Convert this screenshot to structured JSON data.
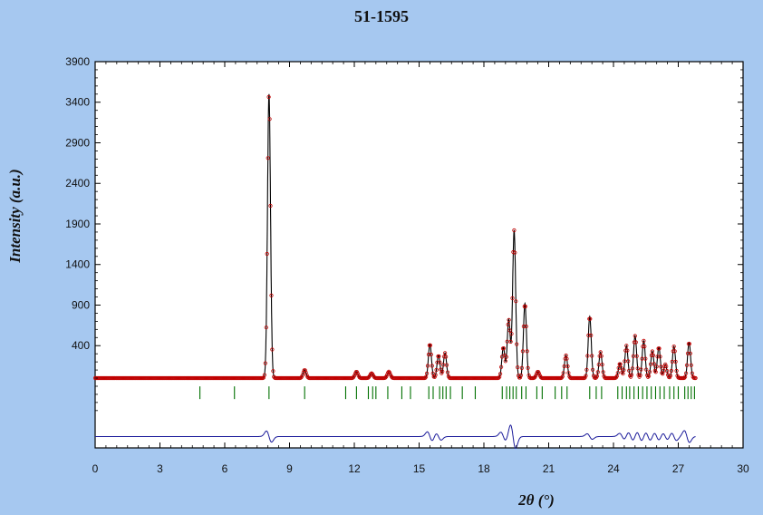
{
  "title": "51-1595",
  "chart_data": {
    "type": "line",
    "title": "51-1595",
    "xlabel": "2θ (°)",
    "ylabel": "Intensity (a.u.)",
    "xlim": [
      0,
      30
    ],
    "ylim": [
      -860,
      3900
    ],
    "xticks": [
      0,
      3,
      6,
      9,
      12,
      15,
      18,
      21,
      24,
      27,
      30
    ],
    "yticks": [
      400,
      900,
      1400,
      1900,
      2400,
      2900,
      3400,
      3900
    ],
    "baseline": 0,
    "series": [
      {
        "role": "calculated",
        "color": "#000000",
        "kind": "peaks",
        "peaks": [
          {
            "x": 8.05,
            "y": 3500
          },
          {
            "x": 9.7,
            "y": 100
          },
          {
            "x": 12.1,
            "y": 80
          },
          {
            "x": 12.8,
            "y": 60
          },
          {
            "x": 13.6,
            "y": 80
          },
          {
            "x": 15.5,
            "y": 420
          },
          {
            "x": 15.9,
            "y": 280
          },
          {
            "x": 16.2,
            "y": 310
          },
          {
            "x": 18.9,
            "y": 380
          },
          {
            "x": 19.15,
            "y": 720
          },
          {
            "x": 19.4,
            "y": 1820
          },
          {
            "x": 19.9,
            "y": 920
          },
          {
            "x": 20.5,
            "y": 80
          },
          {
            "x": 21.8,
            "y": 280
          },
          {
            "x": 22.9,
            "y": 760
          },
          {
            "x": 23.4,
            "y": 320
          },
          {
            "x": 24.3,
            "y": 180
          },
          {
            "x": 24.6,
            "y": 400
          },
          {
            "x": 25.0,
            "y": 520
          },
          {
            "x": 25.4,
            "y": 460
          },
          {
            "x": 25.8,
            "y": 330
          },
          {
            "x": 26.1,
            "y": 380
          },
          {
            "x": 26.4,
            "y": 170
          },
          {
            "x": 26.8,
            "y": 390
          },
          {
            "x": 27.5,
            "y": 440
          }
        ]
      },
      {
        "role": "observed",
        "color": "#c00000",
        "marker": "open-circle"
      },
      {
        "role": "bragg-positions",
        "color": "#007000",
        "y": -180,
        "x": [
          4.85,
          6.45,
          8.05,
          9.7,
          11.6,
          12.1,
          12.65,
          12.85,
          13.0,
          13.55,
          14.2,
          14.6,
          15.45,
          15.65,
          15.95,
          16.1,
          16.25,
          16.45,
          17.0,
          17.6,
          18.85,
          19.05,
          19.2,
          19.35,
          19.5,
          19.75,
          19.95,
          20.45,
          20.7,
          21.3,
          21.6,
          21.85,
          22.9,
          23.2,
          23.45,
          24.2,
          24.4,
          24.6,
          24.75,
          24.95,
          25.15,
          25.35,
          25.55,
          25.75,
          25.95,
          26.15,
          26.35,
          26.6,
          26.8,
          27.0,
          27.3,
          27.45,
          27.6,
          27.75
        ]
      },
      {
        "role": "difference",
        "color": "#1a1a9a",
        "offset": -720,
        "features": [
          {
            "x": 8.05,
            "a": 70
          },
          {
            "x": 15.5,
            "a": 60
          },
          {
            "x": 15.9,
            "a": 45
          },
          {
            "x": 18.9,
            "a": 55
          },
          {
            "x": 19.35,
            "a": 150
          },
          {
            "x": 22.9,
            "a": 35
          },
          {
            "x": 24.4,
            "a": 40
          },
          {
            "x": 24.8,
            "a": 55
          },
          {
            "x": 25.2,
            "a": 60
          },
          {
            "x": 25.6,
            "a": 55
          },
          {
            "x": 26.0,
            "a": 50
          },
          {
            "x": 26.4,
            "a": 45
          },
          {
            "x": 26.8,
            "a": 50
          },
          {
            "x": 27.4,
            "a": 75
          }
        ]
      }
    ],
    "grid": false,
    "legend": "none",
    "colors": {
      "background": "#a6c8f0",
      "plot": "#ffffff"
    }
  }
}
